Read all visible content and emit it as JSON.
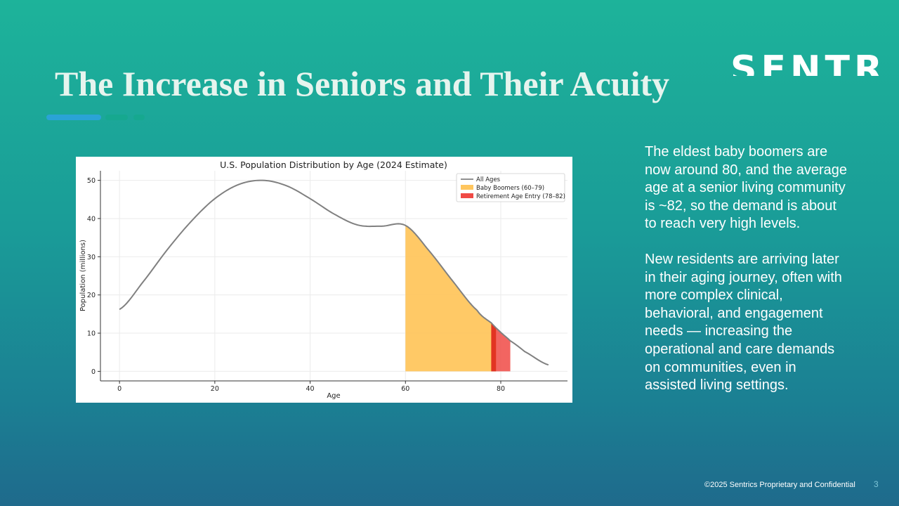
{
  "slide": {
    "title": "The Increase in Seniors and Their Acuity",
    "logo": "SENTRICS",
    "paragraphs": [
      "The eldest baby boomers are now around 80, and the average age at a senior living community is ~82, so the demand is about to reach very high levels.",
      "New residents are arriving later in their aging journey, often with more complex clinical, behavioral, and engagement needs — increasing the operational and care demands on communities, even in assisted living settings."
    ],
    "footer": "©2025 Sentrics Proprietary and Confidential",
    "page_number": "3"
  },
  "chart_data": {
    "type": "area",
    "title": "U.S. Population Distribution by Age (2024 Estimate)",
    "xlabel": "Age",
    "ylabel": "Population (millions)",
    "xlim": [
      -4,
      94
    ],
    "ylim": [
      -2.5,
      52.5
    ],
    "xticks": [
      0,
      20,
      40,
      60,
      80
    ],
    "yticks": [
      0,
      10,
      20,
      30,
      40,
      50
    ],
    "grid": true,
    "legend_position": "top-right",
    "series": [
      {
        "name": "All Ages",
        "color": "#808080",
        "x": [
          0,
          5,
          10,
          15,
          20,
          25,
          30,
          35,
          40,
          45,
          50,
          55,
          60,
          65,
          70,
          75,
          78,
          80,
          82,
          85,
          90
        ],
        "y": [
          16.2,
          23.5,
          31.8,
          39.2,
          45.2,
          48.9,
          50.0,
          48.6,
          45.2,
          41.2,
          38.3,
          38.0,
          38.2,
          31.5,
          23.5,
          16.0,
          12.7,
          10.2,
          8.0,
          5.2,
          1.7
        ]
      },
      {
        "name": "Baby Boomers (60–79)",
        "color": "#ffc65e",
        "range": [
          60,
          79
        ]
      },
      {
        "name": "Retirement Age Entry (78–82)",
        "color": "#f04a45",
        "range": [
          78,
          82
        ]
      }
    ]
  }
}
